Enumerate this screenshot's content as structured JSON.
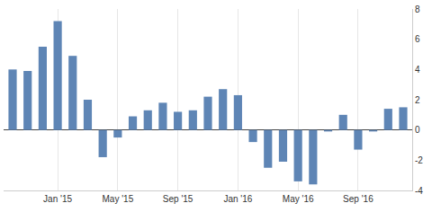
{
  "chart_data": {
    "type": "bar",
    "categories": [
      null,
      null,
      null,
      "Jan '15",
      null,
      null,
      null,
      "May '15",
      null,
      null,
      null,
      "Sep '15",
      null,
      null,
      null,
      "Jan '16",
      null,
      null,
      null,
      "May '16",
      null,
      null,
      null,
      "Sep '16",
      null,
      null,
      null
    ],
    "values": [
      4.0,
      3.9,
      5.5,
      7.2,
      4.9,
      2.0,
      -1.8,
      -0.5,
      0.9,
      1.3,
      1.8,
      1.2,
      1.3,
      2.2,
      2.7,
      2.3,
      -0.8,
      -2.5,
      -2.1,
      -3.4,
      -3.6,
      -0.1,
      1.0,
      -1.3,
      -0.1,
      1.4,
      1.5
    ],
    "color": "#5e85b5",
    "ylim": [
      -4,
      8
    ],
    "yticks": [
      -4,
      -2,
      0,
      2,
      4,
      6,
      8
    ],
    "grid": true
  }
}
